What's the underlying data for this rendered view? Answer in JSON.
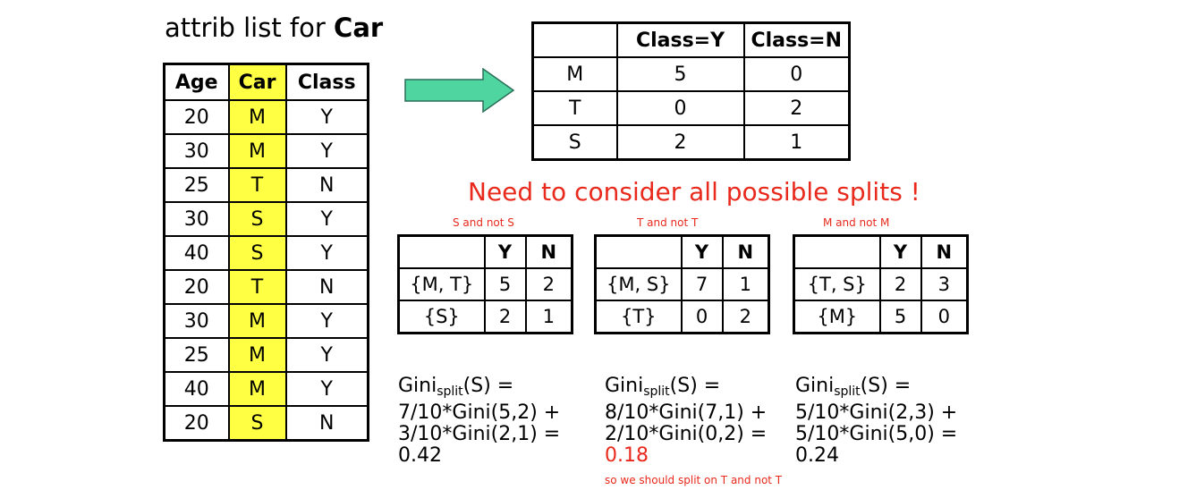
{
  "title": {
    "prefix": "attrib list for ",
    "bold": "Car"
  },
  "attrib_table": {
    "headers": [
      "Age",
      "Car",
      "Class"
    ],
    "rows": [
      [
        "20",
        "M",
        "Y"
      ],
      [
        "30",
        "M",
        "Y"
      ],
      [
        "25",
        "T",
        "N"
      ],
      [
        "30",
        "S",
        "Y"
      ],
      [
        "40",
        "S",
        "Y"
      ],
      [
        "20",
        "T",
        "N"
      ],
      [
        "30",
        "M",
        "Y"
      ],
      [
        "25",
        "M",
        "Y"
      ],
      [
        "40",
        "M",
        "Y"
      ],
      [
        "20",
        "S",
        "N"
      ]
    ]
  },
  "count_table": {
    "headers": [
      "",
      "Class=Y",
      "Class=N"
    ],
    "rows": [
      [
        "M",
        "5",
        "0"
      ],
      [
        "T",
        "0",
        "2"
      ],
      [
        "S",
        "2",
        "1"
      ]
    ]
  },
  "headline": "Need to consider all possible splits !",
  "splits": [
    {
      "caption": "S and not S",
      "headers": [
        "",
        "Y",
        "N"
      ],
      "rows": [
        [
          "{M, T}",
          "5",
          "2"
        ],
        [
          "{S}",
          "2",
          "1"
        ]
      ],
      "gini": {
        "pre": "Gini",
        "sub": "split",
        "post": "(S) =",
        "line2": "7/10*Gini(5,2) +",
        "line3": "3/10*Gini(2,1) =",
        "result": "0.42"
      }
    },
    {
      "caption": "T and not T",
      "headers": [
        "",
        "Y",
        "N"
      ],
      "rows": [
        [
          "{M, S}",
          "7",
          "1"
        ],
        [
          "{T}",
          "0",
          "2"
        ]
      ],
      "gini": {
        "pre": "Gini",
        "sub": "split",
        "post": "(S) =",
        "line2": "8/10*Gini(7,1) +",
        "line3": "2/10*Gini(0,2) =",
        "result": "0.18"
      }
    },
    {
      "caption": "M and not M",
      "headers": [
        "",
        "Y",
        "N"
      ],
      "rows": [
        [
          "{T, S}",
          "2",
          "3"
        ],
        [
          "{M}",
          "5",
          "0"
        ]
      ],
      "gini": {
        "pre": "Gini",
        "sub": "split",
        "post": "(S) =",
        "line2": "5/10*Gini(2,3) +",
        "line3": "5/10*Gini(5,0) =",
        "result": "0.24"
      }
    }
  ],
  "conclusion": "so we should split on T and not T",
  "colors": {
    "highlight": "#ffff44",
    "accent_red": "#e8291c",
    "arrow_fill": "#4fd6a0"
  }
}
